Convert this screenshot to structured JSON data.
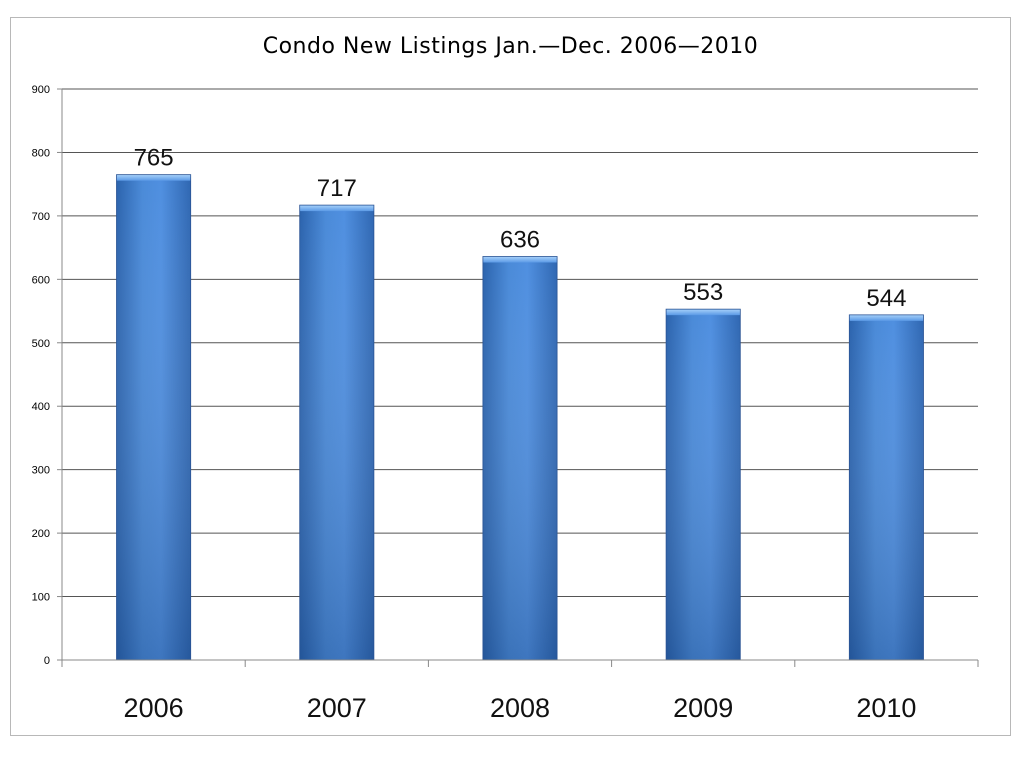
{
  "chart_data": {
    "type": "bar",
    "title": "Condo New Listings Jan.—Dec. 2006—2010",
    "xlabel": "",
    "ylabel": "",
    "categories": [
      "2006",
      "2007",
      "2008",
      "2009",
      "2010"
    ],
    "values": [
      765,
      717,
      636,
      553,
      544
    ],
    "data_labels": [
      "765",
      "717",
      "636",
      "553",
      "544"
    ],
    "ylim": [
      0,
      900
    ],
    "yticks": [
      0,
      100,
      200,
      300,
      400,
      500,
      600,
      700,
      800,
      900
    ],
    "ytick_labels": [
      "0",
      "100",
      "200",
      "300",
      "400",
      "500",
      "600",
      "700",
      "800",
      "900"
    ],
    "grid": true,
    "legend": "none",
    "colors": {
      "bar_light": "#4f8fe0",
      "bar_dark": "#2a5ea6",
      "bar_top": "#8cc0f5",
      "grid": "#555555",
      "axis": "#888888"
    }
  }
}
